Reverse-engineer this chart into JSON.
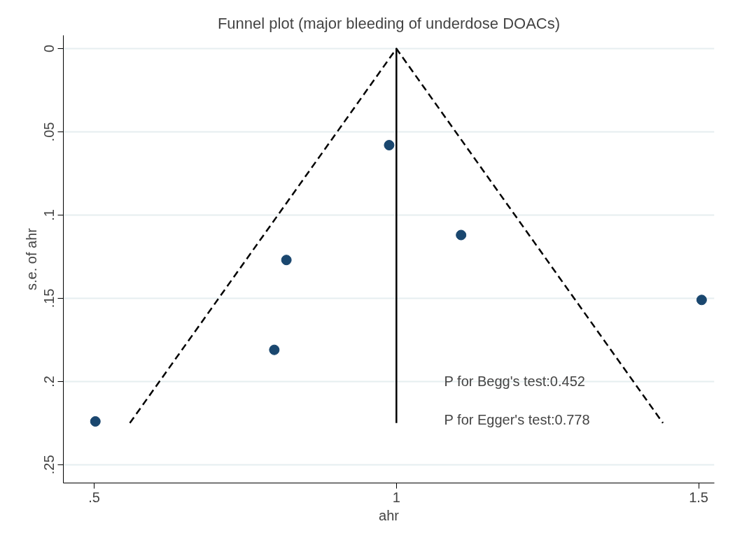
{
  "chart_data": {
    "type": "scatter",
    "title": "Funnel plot (major bleeding of underdose DOACs)",
    "xlabel": "ahr",
    "ylabel": "s.e. of ahr",
    "series": [
      {
        "color": "#1a476f",
        "marker": "circle",
        "x": [
          0.502,
          0.798,
          0.818,
          0.988,
          1.107,
          1.505
        ],
        "values": [
          0.224,
          0.181,
          0.127,
          0.058,
          0.112,
          0.151
        ]
      },
      {
        "type": "line",
        "color": "#000000",
        "line_style": "dashed",
        "x": [
          0.559,
          1.0,
          1.441
        ],
        "values": [
          0.225,
          0.0,
          0.225
        ]
      },
      {
        "type": "line",
        "color": "#000000",
        "line_style": "solid",
        "x": [
          1.0,
          1.0
        ],
        "values": [
          0.0,
          0.225
        ]
      }
    ],
    "xlim": [
      0.449,
      1.526
    ],
    "ylim": [
      0.261,
      -0.008
    ],
    "xticks": [
      {
        "value": 0.5,
        "label": ".5"
      },
      1,
      {
        "value": 1.5,
        "label": "1.5"
      }
    ],
    "yticks": [
      0,
      {
        "value": 0.05,
        "label": ".05"
      },
      {
        "value": 0.1,
        "label": ".1"
      },
      {
        "value": 0.15,
        "label": ".15"
      },
      {
        "value": 0.2,
        "label": ".2"
      },
      {
        "value": 0.25,
        "label": ".25"
      }
    ],
    "grid": "y",
    "annotations": [
      "P for Begg's test:0.452",
      "P for Egger's test:0.778"
    ]
  }
}
